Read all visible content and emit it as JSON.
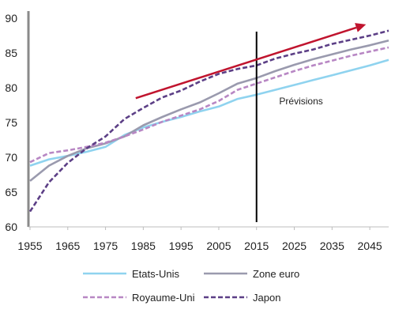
{
  "chart_data": {
    "type": "line",
    "title": "",
    "xlabel": "",
    "ylabel": "",
    "xlim": [
      1955,
      2050
    ],
    "ylim": [
      60,
      90
    ],
    "x_ticks": [
      1955,
      1965,
      1975,
      1985,
      1995,
      2005,
      2015,
      2025,
      2035,
      2045
    ],
    "y_ticks": [
      60,
      65,
      70,
      75,
      80,
      85,
      90
    ],
    "grid": false,
    "legend": "bottom",
    "forecast_start": 2015,
    "annotations": [
      {
        "text": "Prévisions",
        "x": 2021,
        "y": 77.6
      }
    ],
    "trend_arrow": {
      "from": [
        1983,
        78.5
      ],
      "to": [
        2044,
        89.1
      ],
      "color": "#c0142e"
    },
    "series": [
      {
        "name": "Etats-Unis",
        "color": "#8fd3ef",
        "dash": "solid",
        "x": [
          1955,
          1960,
          1965,
          1970,
          1975,
          1980,
          1985,
          1990,
          1995,
          2000,
          2005,
          2010,
          2015,
          2020,
          2025,
          2030,
          2035,
          2040,
          2045,
          2050
        ],
        "y": [
          68.8,
          69.7,
          70.2,
          70.8,
          71.5,
          73.2,
          74.3,
          75.1,
          75.8,
          76.6,
          77.3,
          78.4,
          79.0,
          79.7,
          80.4,
          81.1,
          81.8,
          82.5,
          83.2,
          84.0
        ]
      },
      {
        "name": "Zone euro",
        "color": "#9a9aae",
        "dash": "solid",
        "x": [
          1955,
          1960,
          1965,
          1970,
          1975,
          1980,
          1985,
          1990,
          1995,
          2000,
          2005,
          2010,
          2015,
          2020,
          2025,
          2030,
          2035,
          2040,
          2045,
          2050
        ],
        "y": [
          66.6,
          68.8,
          70.2,
          71.3,
          72.0,
          73.0,
          74.6,
          75.8,
          76.9,
          77.9,
          79.2,
          80.6,
          81.4,
          82.4,
          83.3,
          84.1,
          84.8,
          85.5,
          86.1,
          86.8
        ]
      },
      {
        "name": "Royaume-Uni",
        "color": "#b887c4",
        "dash": "dashed",
        "x": [
          1955,
          1960,
          1965,
          1970,
          1975,
          1980,
          1985,
          1990,
          1995,
          2000,
          2005,
          2010,
          2015,
          2020,
          2025,
          2030,
          2035,
          2040,
          2045,
          2050
        ],
        "y": [
          69.3,
          70.6,
          71.0,
          71.5,
          72.1,
          73.0,
          74.0,
          75.1,
          76.0,
          76.9,
          78.1,
          79.7,
          80.6,
          81.5,
          82.4,
          83.2,
          83.9,
          84.6,
          85.2,
          85.8
        ]
      },
      {
        "name": "Japon",
        "color": "#5c3f86",
        "dash": "dashed",
        "x": [
          1955,
          1960,
          1965,
          1970,
          1975,
          1980,
          1985,
          1990,
          1995,
          2000,
          2005,
          2010,
          2015,
          2020,
          2025,
          2030,
          2035,
          2040,
          2045,
          2050
        ],
        "y": [
          62.2,
          66.4,
          69.2,
          71.3,
          73.0,
          75.5,
          77.1,
          78.6,
          79.6,
          80.9,
          82.0,
          82.7,
          83.2,
          84.2,
          84.9,
          85.5,
          86.3,
          86.9,
          87.5,
          88.2
        ]
      }
    ]
  }
}
